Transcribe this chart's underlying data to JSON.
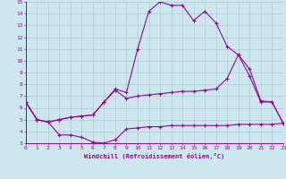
{
  "xlabel": "Windchill (Refroidissement éolien,°C)",
  "bg_color": "#cce8ee",
  "grid_color": "#aacccc",
  "line_color": "#990099",
  "xlim": [
    0,
    23
  ],
  "ylim": [
    3,
    15
  ],
  "xticks": [
    0,
    1,
    2,
    3,
    4,
    5,
    6,
    7,
    8,
    9,
    10,
    11,
    12,
    13,
    14,
    15,
    16,
    17,
    18,
    19,
    20,
    21,
    22,
    23
  ],
  "yticks": [
    3,
    4,
    5,
    6,
    7,
    8,
    9,
    10,
    11,
    12,
    13,
    14,
    15
  ],
  "line1_x": [
    0,
    1,
    2,
    3,
    4,
    5,
    6,
    7,
    8,
    9,
    10,
    11,
    12,
    13,
    14,
    15,
    16,
    17,
    18,
    19,
    20,
    21,
    22,
    23
  ],
  "line1_y": [
    6.5,
    5.0,
    4.8,
    3.7,
    3.7,
    3.5,
    3.1,
    3.0,
    3.3,
    4.2,
    4.3,
    4.4,
    4.4,
    4.5,
    4.5,
    4.5,
    4.5,
    4.5,
    4.5,
    4.6,
    4.6,
    4.6,
    4.6,
    4.7
  ],
  "line2_x": [
    0,
    1,
    2,
    3,
    4,
    5,
    6,
    7,
    8,
    9,
    10,
    11,
    12,
    13,
    14,
    15,
    16,
    17,
    18,
    19,
    20,
    21,
    22,
    23
  ],
  "line2_y": [
    6.5,
    5.0,
    4.8,
    5.0,
    5.2,
    5.3,
    5.4,
    6.5,
    7.5,
    6.8,
    7.0,
    7.1,
    7.2,
    7.3,
    7.4,
    7.4,
    7.5,
    7.6,
    8.5,
    10.5,
    8.7,
    6.5,
    6.5,
    4.7
  ],
  "line3_x": [
    0,
    1,
    2,
    3,
    4,
    5,
    6,
    7,
    8,
    9,
    10,
    11,
    12,
    13,
    14,
    15,
    16,
    17,
    18,
    19,
    20,
    21,
    22,
    23
  ],
  "line3_y": [
    6.5,
    5.0,
    4.8,
    5.0,
    5.2,
    5.3,
    5.4,
    6.5,
    7.6,
    7.3,
    11.0,
    14.2,
    15.0,
    14.7,
    14.7,
    13.4,
    14.2,
    13.2,
    11.2,
    10.5,
    9.3,
    6.6,
    6.5,
    4.7
  ]
}
